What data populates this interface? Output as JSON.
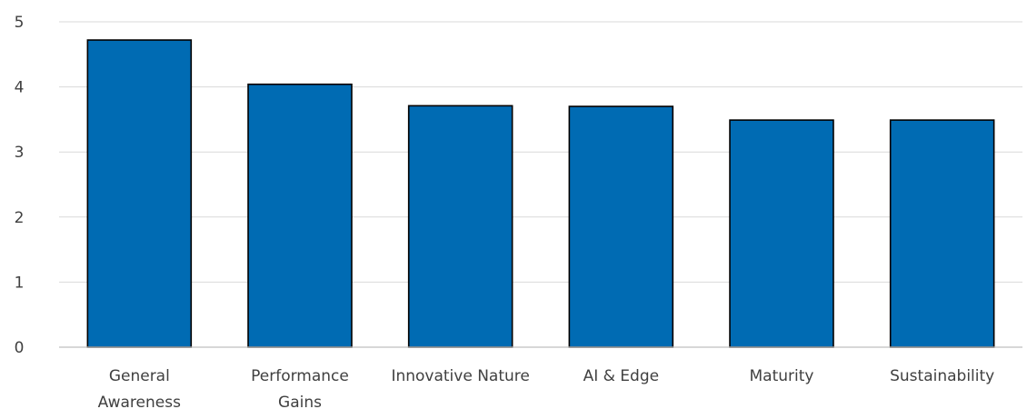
{
  "chart_data": {
    "type": "bar",
    "categories": [
      [
        "General",
        "Awareness"
      ],
      [
        "Performance",
        "Gains"
      ],
      [
        "Innovative Nature"
      ],
      [
        "AI & Edge"
      ],
      [
        "Maturity"
      ],
      [
        "Sustainability"
      ]
    ],
    "values": [
      4.72,
      4.04,
      3.71,
      3.7,
      3.49,
      3.49
    ],
    "title": "",
    "xlabel": "",
    "ylabel": "",
    "ylim": [
      0,
      5
    ],
    "yticks": [
      0,
      1,
      2,
      3,
      4,
      5
    ],
    "grid": true,
    "legend": "none",
    "colors": {
      "bar": "#006bb3",
      "bar_border": "#000000",
      "gridline": "#d9d9d9",
      "axis": "#bfbfbf",
      "text": "#404040"
    }
  }
}
